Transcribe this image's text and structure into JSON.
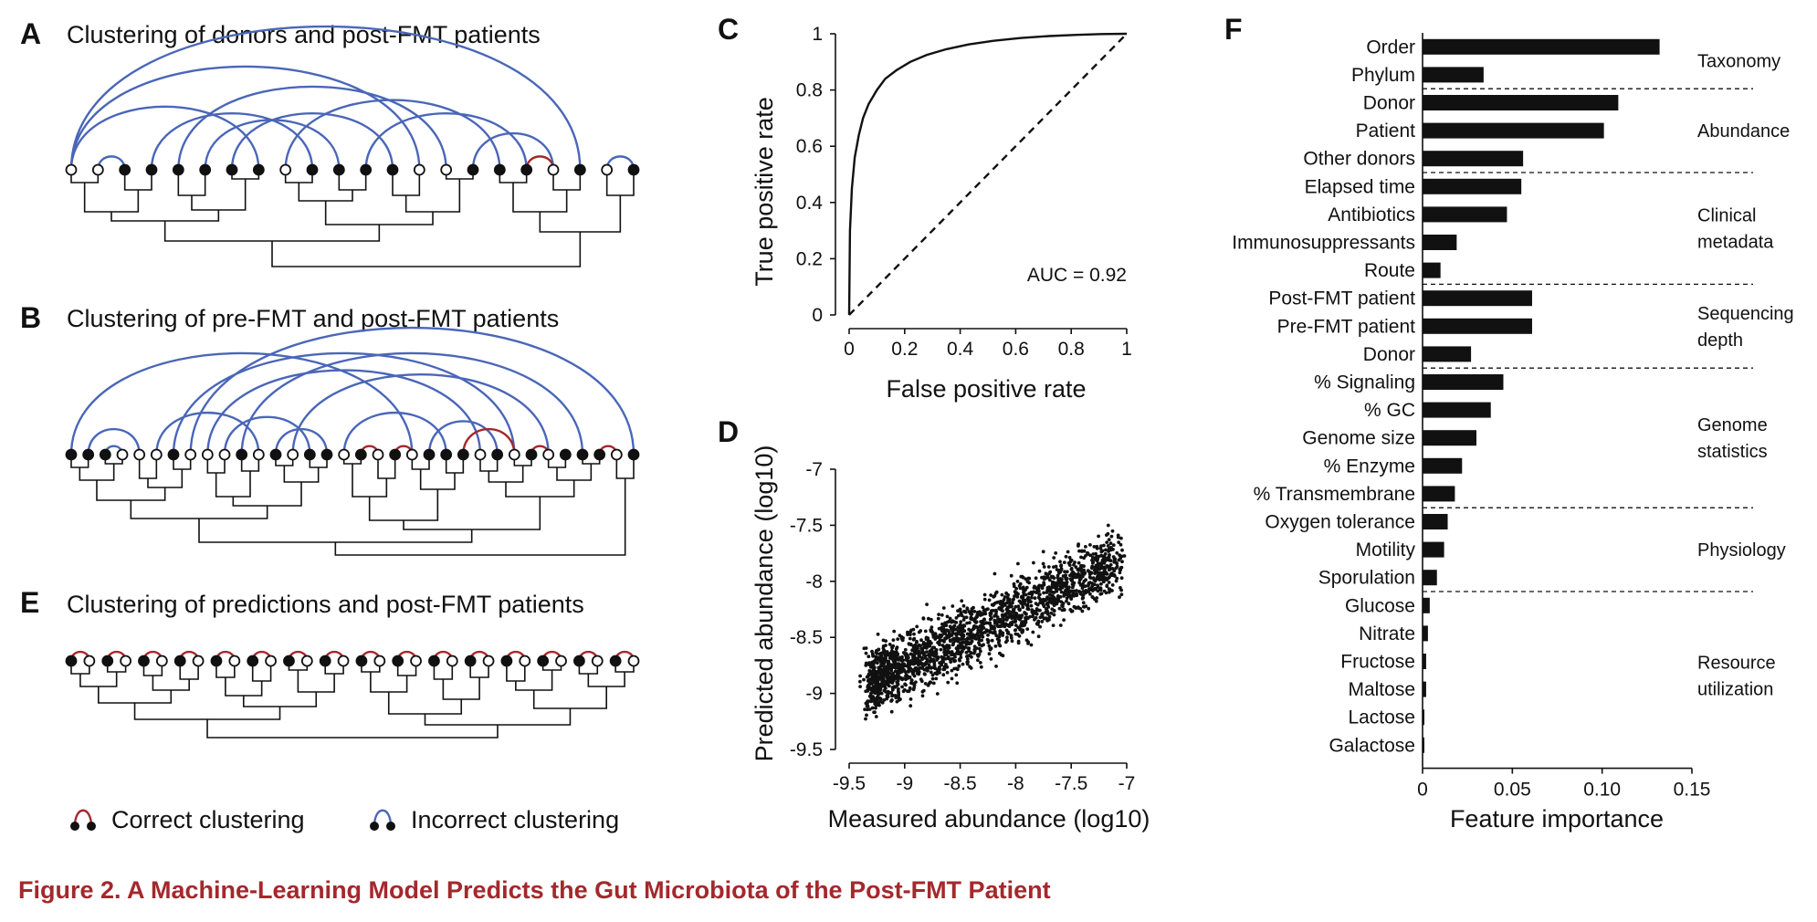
{
  "figure": {
    "caption": "Figure 2.  A Machine-Learning Model Predicts the Gut Microbiota of the Post-FMT Patient",
    "colors": {
      "correct": "#a4282c",
      "incorrect": "#4a66b8",
      "caption": "#a4282c",
      "ink": "#111111"
    }
  },
  "panelA": {
    "letter": "A",
    "title": "Clustering of donors and post-FMT patients",
    "leaves": [
      "open",
      "open",
      "filled",
      "filled",
      "filled",
      "filled",
      "filled",
      "filled",
      "open",
      "filled",
      "filled",
      "filled",
      "filled",
      "open",
      "open",
      "filled",
      "filled",
      "filled",
      "open",
      "filled",
      "open",
      "filled"
    ],
    "links": [
      [
        0,
        7,
        "incorrect"
      ],
      [
        0,
        13,
        "incorrect"
      ],
      [
        0,
        19,
        "incorrect"
      ],
      [
        1,
        2,
        "incorrect"
      ],
      [
        3,
        9,
        "incorrect"
      ],
      [
        4,
        14,
        "incorrect"
      ],
      [
        5,
        10,
        "incorrect"
      ],
      [
        6,
        12,
        "incorrect"
      ],
      [
        8,
        16,
        "incorrect"
      ],
      [
        11,
        17,
        "incorrect"
      ],
      [
        15,
        18,
        "incorrect"
      ],
      [
        17,
        18,
        "correct"
      ],
      [
        20,
        21,
        "incorrect"
      ]
    ]
  },
  "panelB": {
    "letter": "B",
    "title": "Clustering of pre-FMT and post-FMT patients",
    "leaves": [
      "filled",
      "filled",
      "filled",
      "open",
      "open",
      "open",
      "filled",
      "open",
      "open",
      "open",
      "filled",
      "open",
      "filled",
      "open",
      "filled",
      "filled",
      "open",
      "filled",
      "open",
      "filled",
      "open",
      "filled",
      "filled",
      "filled",
      "open",
      "filled",
      "open",
      "filled",
      "open",
      "filled",
      "filled",
      "filled",
      "open",
      "filled"
    ],
    "links": [
      [
        0,
        20,
        "incorrect"
      ],
      [
        1,
        4,
        "incorrect"
      ],
      [
        2,
        3,
        "incorrect"
      ],
      [
        5,
        11,
        "incorrect"
      ],
      [
        6,
        26,
        "incorrect"
      ],
      [
        7,
        33,
        "incorrect"
      ],
      [
        8,
        24,
        "incorrect"
      ],
      [
        9,
        14,
        "incorrect"
      ],
      [
        10,
        30,
        "incorrect"
      ],
      [
        12,
        15,
        "incorrect"
      ],
      [
        13,
        28,
        "incorrect"
      ],
      [
        16,
        22,
        "incorrect"
      ],
      [
        17,
        18,
        "correct"
      ],
      [
        19,
        20,
        "correct"
      ],
      [
        21,
        25,
        "incorrect"
      ],
      [
        23,
        26,
        "correct"
      ],
      [
        27,
        28,
        "correct"
      ],
      [
        31,
        32,
        "correct"
      ]
    ]
  },
  "panelE": {
    "letter": "E",
    "title": "Clustering of predictions and post-FMT patients",
    "n_pairs": 16,
    "leaves": [
      "filled",
      "open",
      "filled",
      "open",
      "filled",
      "open",
      "filled",
      "open",
      "filled",
      "open",
      "filled",
      "open",
      "filled",
      "open",
      "filled",
      "open",
      "filled",
      "open",
      "filled",
      "open",
      "filled",
      "open",
      "filled",
      "open",
      "filled",
      "open",
      "filled",
      "open",
      "filled",
      "open",
      "filled",
      "open"
    ]
  },
  "legend": {
    "correct": "Correct clustering",
    "incorrect": "Incorrect clustering"
  },
  "panelC": {
    "letter": "C",
    "chart_data": {
      "type": "line",
      "xlabel": "False positive rate",
      "ylabel": "True positive rate",
      "xlim": [
        0,
        1
      ],
      "ylim": [
        0,
        1
      ],
      "xticks": [
        "0",
        "0.2",
        "0.4",
        "0.6",
        "0.8",
        "1"
      ],
      "yticks": [
        "0",
        "0.2",
        "0.4",
        "0.6",
        "0.8",
        "1"
      ],
      "annotation": "AUC = 0.92",
      "series": [
        {
          "style": "solid",
          "x": [
            0,
            0.003,
            0.01,
            0.02,
            0.035,
            0.05,
            0.07,
            0.1,
            0.13,
            0.17,
            0.22,
            0.28,
            0.35,
            0.43,
            0.52,
            0.62,
            0.72,
            0.82,
            0.91,
            1.0
          ],
          "y": [
            0,
            0.3,
            0.45,
            0.56,
            0.64,
            0.7,
            0.75,
            0.8,
            0.84,
            0.87,
            0.9,
            0.925,
            0.945,
            0.962,
            0.975,
            0.985,
            0.992,
            0.996,
            0.999,
            1.0
          ]
        },
        {
          "style": "dashed",
          "x": [
            0,
            1
          ],
          "y": [
            0,
            1
          ]
        }
      ]
    }
  },
  "panelD": {
    "letter": "D",
    "chart_data": {
      "type": "scatter",
      "xlabel": "Measured abundance (log10)",
      "ylabel": "Predicted abundance (log10)",
      "xlim": [
        -9.5,
        -7
      ],
      "ylim": [
        -9.5,
        -7
      ],
      "xticks": [
        "-9.5",
        "-9",
        "-8.5",
        "-8",
        "-7.5",
        "-7"
      ],
      "yticks": [
        "-9.5",
        "-9",
        "-8.5",
        "-8",
        "-7.5",
        "-7"
      ],
      "points": {
        "count": 2000,
        "x_range": [
          -9.3,
          -7.05
        ],
        "y_center": [
          -8.9,
          -7.8
        ],
        "spread": 0.14
      }
    }
  },
  "panelF": {
    "letter": "F",
    "chart_data": {
      "type": "bar",
      "orientation": "horizontal",
      "xlabel": "Feature importance",
      "xlim": [
        0,
        0.15
      ],
      "xticks": [
        "0",
        "0.05",
        "0.10",
        "0.15"
      ],
      "categories": [
        "Order",
        "Phylum",
        "Donor",
        "Patient",
        "Other donors",
        "Elapsed time",
        "Antibiotics",
        "Immunosuppressants",
        "Route",
        "Post-FMT patient",
        "Pre-FMT patient",
        "Donor",
        "% Signaling",
        "% GC",
        "Genome size",
        "% Enzyme",
        "% Transmembrane",
        "Oxygen tolerance",
        "Motility",
        "Sporulation",
        "Glucose",
        "Nitrate",
        "Fructose",
        "Maltose",
        "Lactose",
        "Galactose"
      ],
      "values": [
        0.132,
        0.034,
        0.109,
        0.101,
        0.056,
        0.055,
        0.047,
        0.019,
        0.01,
        0.061,
        0.061,
        0.027,
        0.045,
        0.038,
        0.03,
        0.022,
        0.018,
        0.014,
        0.012,
        0.008,
        0.004,
        0.003,
        0.002,
        0.002,
        0.001,
        0.001
      ],
      "groups": [
        {
          "label": "Taxonomy",
          "lines": [
            "Taxonomy"
          ],
          "start": 0,
          "end": 1
        },
        {
          "label": "Abundance",
          "lines": [
            "Abundance"
          ],
          "start": 2,
          "end": 4
        },
        {
          "label": "Clinical metadata",
          "lines": [
            "Clinical",
            "metadata"
          ],
          "start": 5,
          "end": 8
        },
        {
          "label": "Sequencing depth",
          "lines": [
            "Sequencing",
            "depth"
          ],
          "start": 9,
          "end": 11
        },
        {
          "label": "Genome statistics",
          "lines": [
            "Genome",
            "statistics"
          ],
          "start": 12,
          "end": 16
        },
        {
          "label": "Physiology",
          "lines": [
            "Physiology"
          ],
          "start": 17,
          "end": 19
        },
        {
          "label": "Resource utilization",
          "lines": [
            "Resource",
            "utilization"
          ],
          "start": 20,
          "end": 25
        }
      ]
    }
  }
}
